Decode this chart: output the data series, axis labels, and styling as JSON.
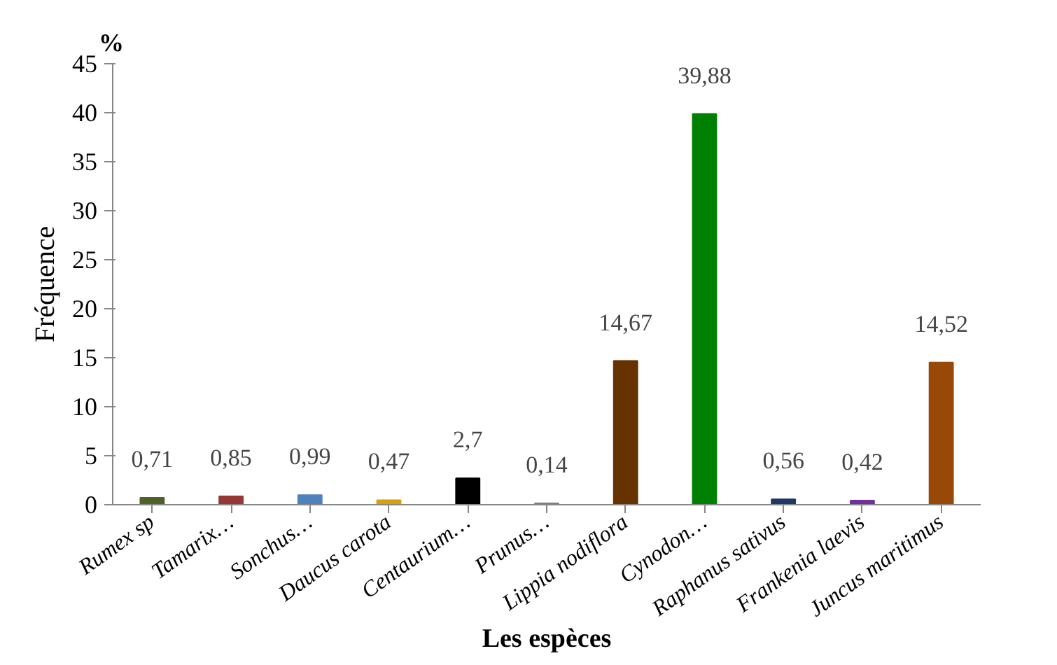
{
  "chart_data": {
    "type": "bar",
    "xlabel": "Les espèces",
    "ylabel": "Fréquence",
    "annotations": [
      "%"
    ],
    "categories": [
      "Rumex sp",
      "Tamarix…",
      "Sonchus…",
      "Daucus carota",
      "Centaurium…",
      "Prunus…",
      "Lippia nodiflora",
      "Cynodon…",
      "Raphanus sativus",
      "Frankenia laevis",
      "Juncus maritimus"
    ],
    "values": [
      0.71,
      0.85,
      0.99,
      0.47,
      2.7,
      0.14,
      14.67,
      39.88,
      0.56,
      0.42,
      14.52
    ],
    "colors": [
      "#4f6228",
      "#953735",
      "#4f81bd",
      "#d6a10a",
      "#000000",
      "#7f7f7f",
      "#663300",
      "#008000",
      "#1f3864",
      "#7030a0",
      "#984807"
    ],
    "value_labels": [
      "0,71",
      "0,85",
      "0,99",
      "0,47",
      "2,7",
      "0,14",
      "14,67",
      "39,88",
      "0,56",
      "0,42",
      "14,52"
    ],
    "ylim": [
      0,
      45
    ],
    "yticks": [
      0,
      5,
      10,
      15,
      20,
      25,
      30,
      35,
      40,
      45
    ],
    "grid": false
  }
}
